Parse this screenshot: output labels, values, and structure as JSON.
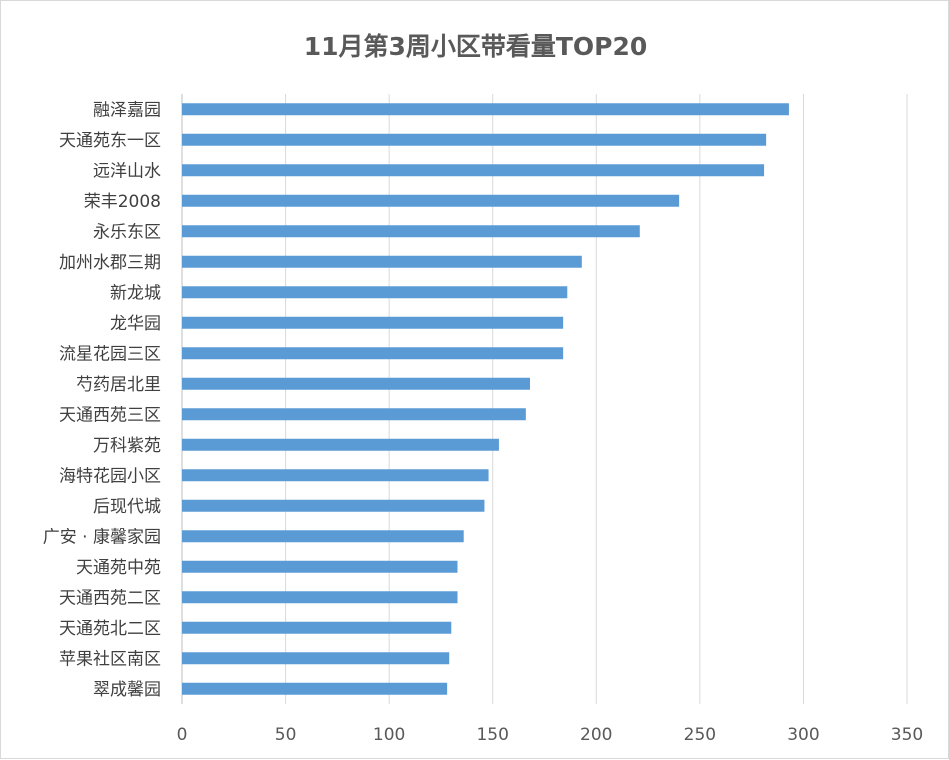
{
  "chart_data": {
    "type": "bar",
    "orientation": "horizontal",
    "title": "11月第3周小区带看量TOP20",
    "categories": [
      "融泽嘉园",
      "天通苑东一区",
      "远洋山水",
      "荣丰2008",
      "永乐东区",
      "加州水郡三期",
      "新龙城",
      "龙华园",
      "流星花园三区",
      "芍药居北里",
      "天通西苑三区",
      "万科紫苑",
      "海特花园小区",
      "后现代城",
      "广安 · 康馨家园",
      "天通苑中苑",
      "天通西苑二区",
      "天通苑北二区",
      "苹果社区南区",
      "翠成馨园"
    ],
    "values": [
      293,
      282,
      281,
      240,
      221,
      193,
      186,
      184,
      184,
      168,
      166,
      153,
      148,
      146,
      136,
      133,
      133,
      130,
      129,
      128
    ],
    "xlim": [
      0,
      350
    ],
    "xticks": [
      "0",
      "50",
      "100",
      "150",
      "200",
      "250",
      "300",
      "350"
    ],
    "grid": true,
    "legend": "none",
    "bar_color": "#5b9bd5"
  }
}
